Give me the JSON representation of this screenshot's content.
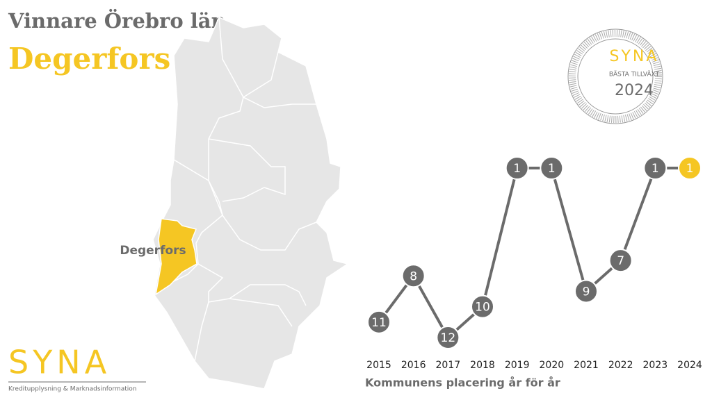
{
  "header": {
    "title": "Vinnare Örebro län",
    "winner": "Degerfors"
  },
  "map": {
    "label": "Degerfors"
  },
  "badge": {
    "brand": "SYNA",
    "award": "BÄSTA TILLVÄXT",
    "year": "2024"
  },
  "logo": {
    "brand": "SYNA",
    "tagline": "Kreditupplysning & Marknadsinformation"
  },
  "chart_data": {
    "type": "line",
    "x_label": "Kommunens placering år för år",
    "categories": [
      "2015",
      "2016",
      "2017",
      "2018",
      "2019",
      "2020",
      "2021",
      "2022",
      "2023",
      "2024"
    ],
    "series": [
      {
        "name": "Placering",
        "color": "#6b6b6b",
        "values": [
          11,
          8,
          12,
          10,
          1,
          1,
          9,
          7,
          1,
          1
        ],
        "point_colors": [
          "#6b6b6b",
          "#6b6b6b",
          "#6b6b6b",
          "#6b6b6b",
          "#6b6b6b",
          "#6b6b6b",
          "#6b6b6b",
          "#6b6b6b",
          "#6b6b6b",
          "#f5c623"
        ]
      }
    ],
    "ylim": [
      12,
      1
    ]
  }
}
